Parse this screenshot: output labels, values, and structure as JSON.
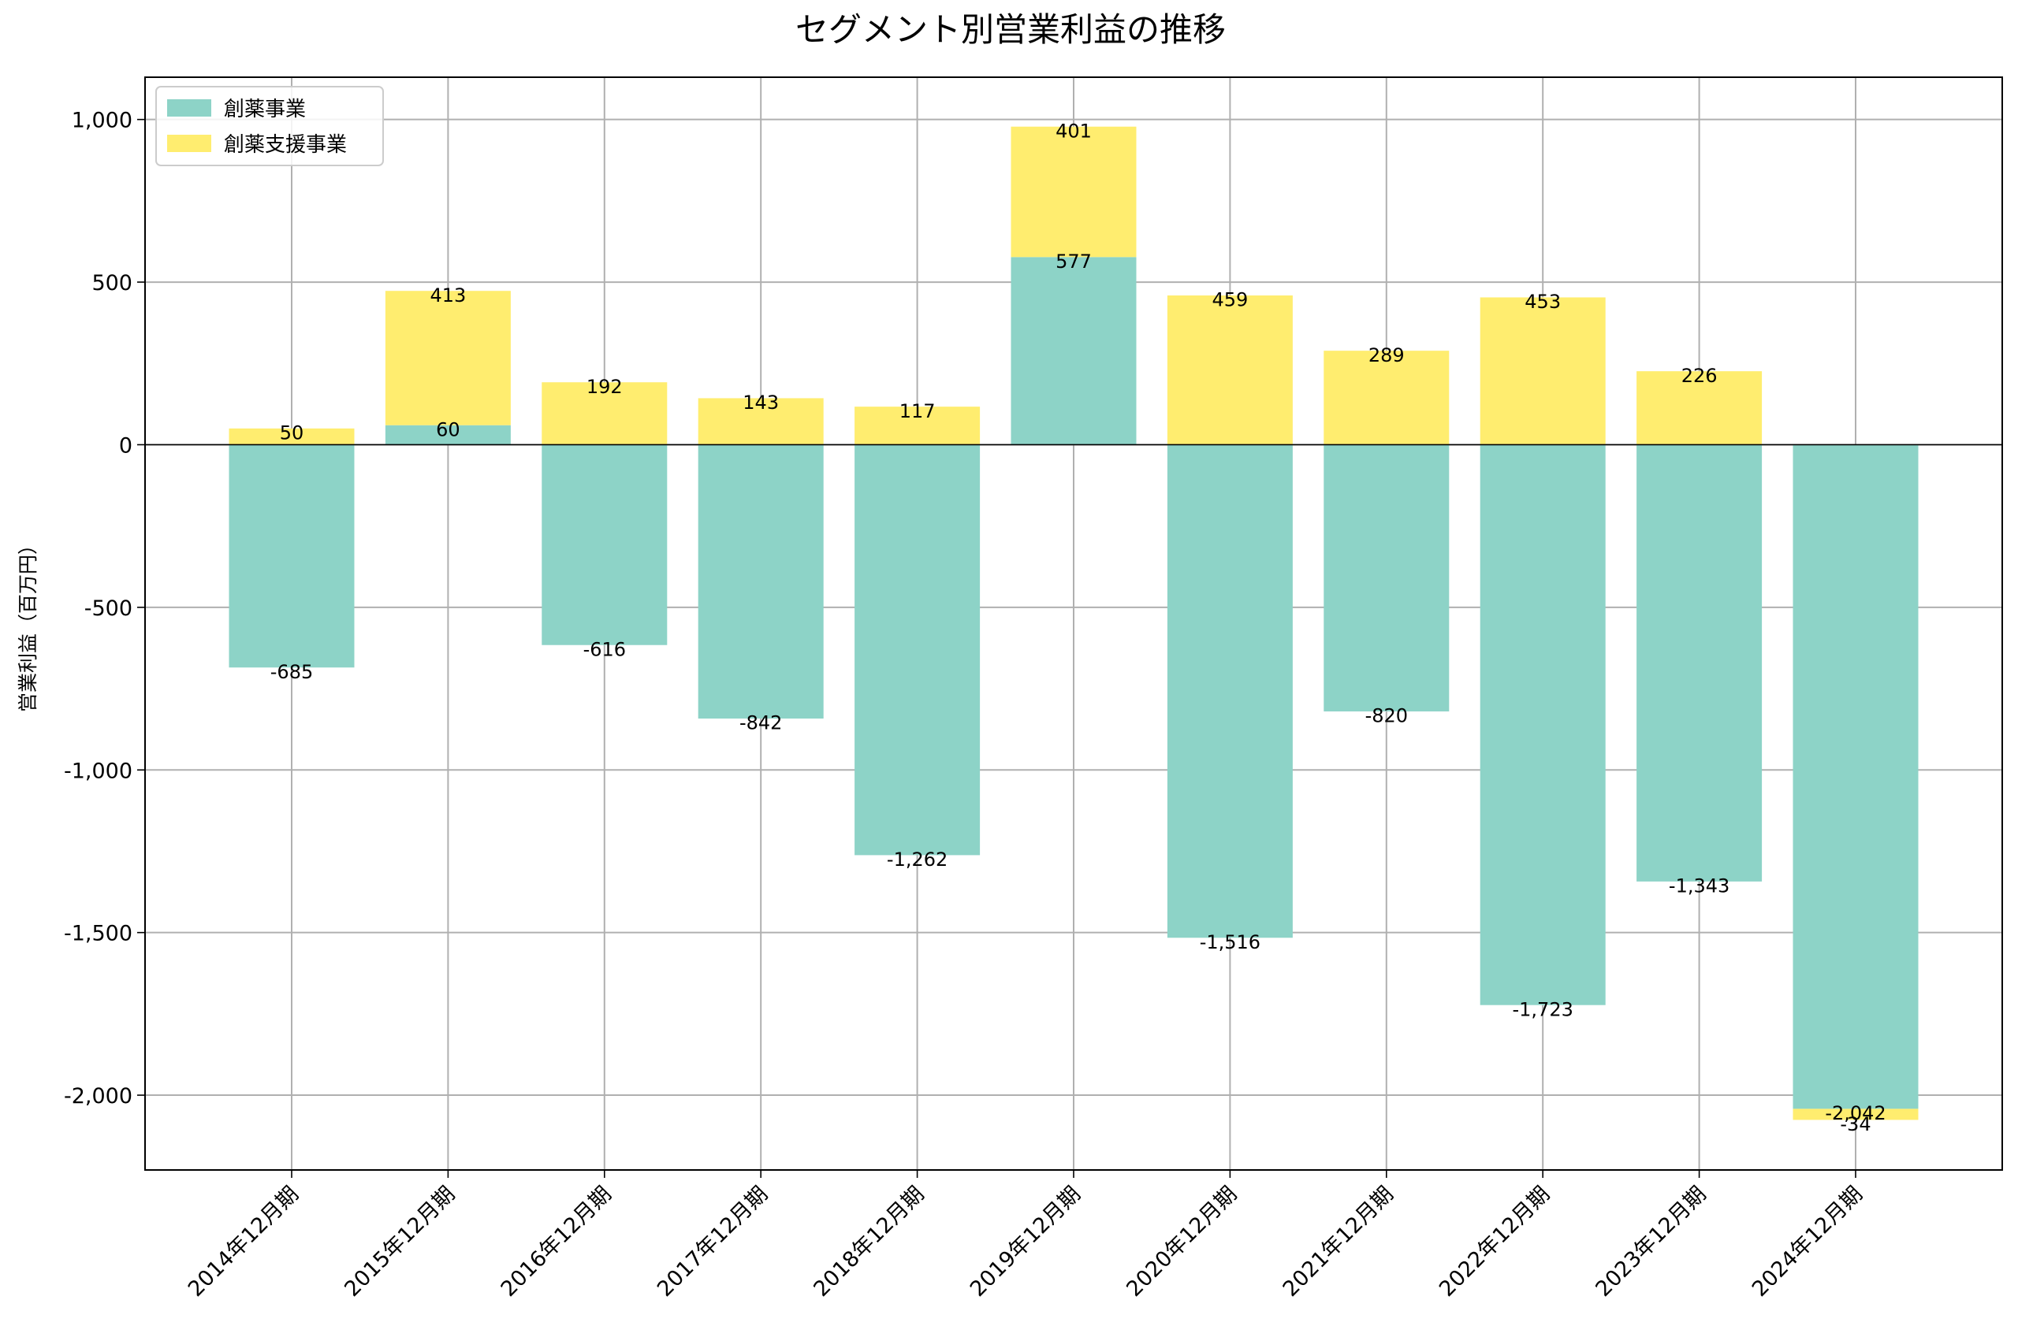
{
  "chart_data": {
    "type": "bar",
    "stacked": true,
    "title": "セグメント別営業利益の推移",
    "xlabel": "",
    "ylabel": "営業利益（百万円）",
    "ylim": [
      -2230,
      1130
    ],
    "yticks": [
      1000,
      500,
      0,
      -500,
      -1000,
      -1500,
      -2000
    ],
    "ytick_labels": [
      "1,000",
      "500",
      "0",
      "-500",
      "-1,000",
      "-1,500",
      "-2,000"
    ],
    "grid": true,
    "legend_position": "top-left",
    "categories": [
      "2014年12月期",
      "2015年12月期",
      "2016年12月期",
      "2017年12月期",
      "2018年12月期",
      "2019年12月期",
      "2020年12月期",
      "2021年12月期",
      "2022年12月期",
      "2023年12月期",
      "2024年12月期"
    ],
    "series": [
      {
        "name": "創薬事業",
        "color": "#8dd3c7",
        "values": [
          -685,
          60,
          -616,
          -842,
          -1262,
          577,
          -1516,
          -820,
          -1723,
          -1343,
          -2042
        ],
        "labels": [
          "-685",
          "60",
          "-616",
          "-842",
          "-1,262",
          "577",
          "-1,516",
          "-820",
          "-1,723",
          "-1,343",
          "-2,042"
        ]
      },
      {
        "name": "創薬支援事業",
        "color": "#ffed6f",
        "values": [
          50,
          413,
          192,
          143,
          117,
          401,
          459,
          289,
          453,
          226,
          -34
        ],
        "labels": [
          "50",
          "413",
          "192",
          "143",
          "117",
          "401",
          "459",
          "289",
          "453",
          "226",
          "-34"
        ]
      }
    ]
  }
}
